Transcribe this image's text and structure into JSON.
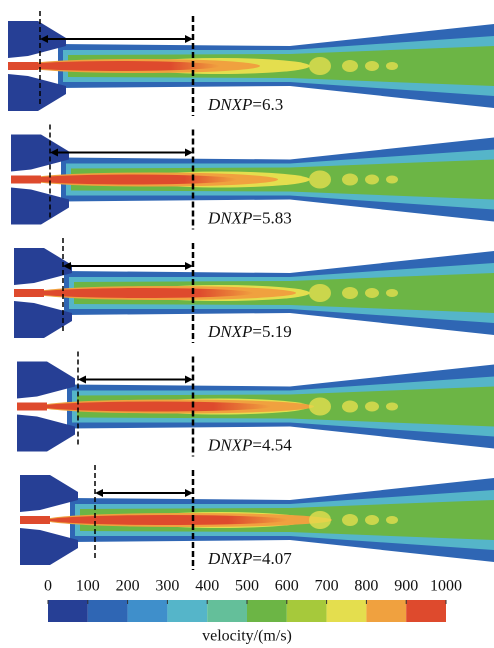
{
  "panels": [
    {
      "variable": "DNXP",
      "value": "=6.3"
    },
    {
      "variable": "DNXP",
      "value": "=5.83"
    },
    {
      "variable": "DNXP",
      "value": "=5.19"
    },
    {
      "variable": "DNXP",
      "value": "=4.54"
    },
    {
      "variable": "DNXP",
      "value": "=4.07"
    }
  ],
  "colorbar": {
    "ticks": [
      0,
      100,
      200,
      300,
      400,
      500,
      600,
      700,
      800,
      900,
      1000
    ],
    "colors": [
      "#263f95",
      "#2f66b4",
      "#3f8fcb",
      "#55b5c9",
      "#64bf9a",
      "#6cb545",
      "#a6c93b",
      "#e4de4e",
      "#f0a13f",
      "#de4a2d"
    ],
    "label": "velocity/(m/s)"
  }
}
